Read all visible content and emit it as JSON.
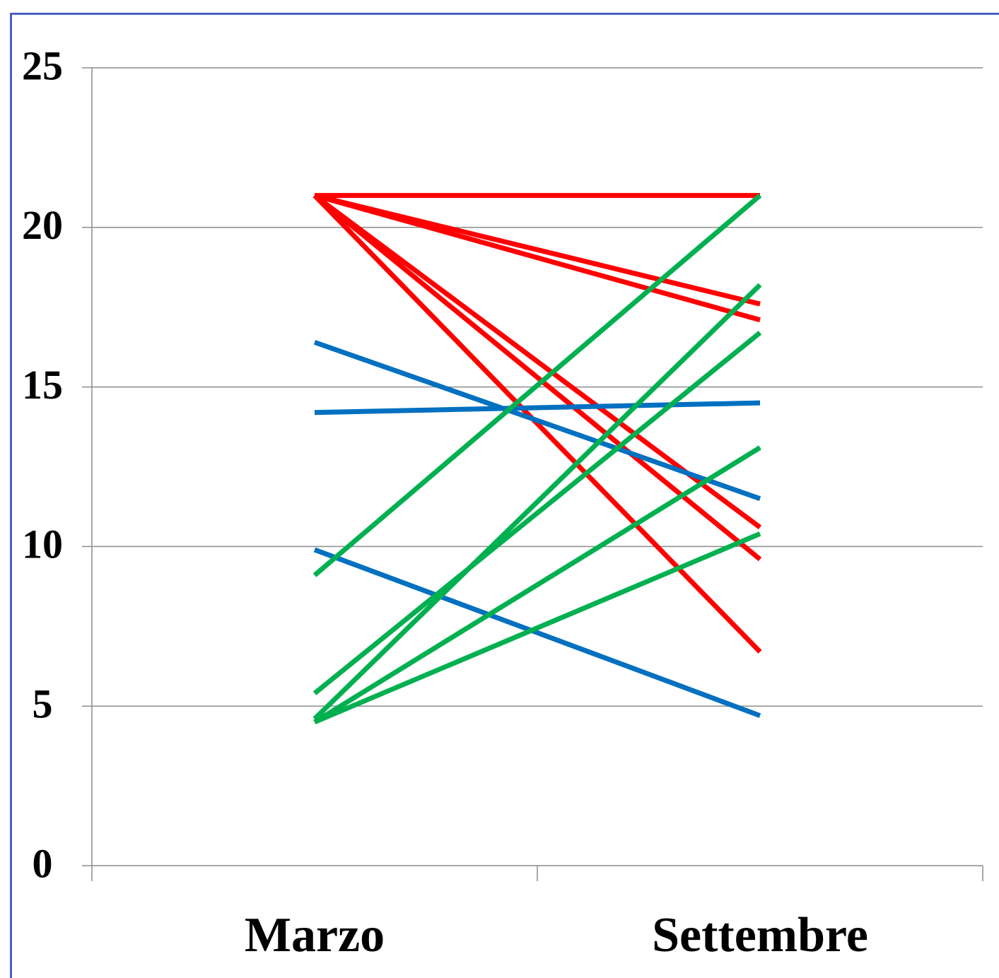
{
  "chart_data": {
    "type": "line",
    "categories": [
      "Marzo",
      "Settembre"
    ],
    "ylim": [
      0,
      25
    ],
    "yticks": [
      0,
      5,
      10,
      15,
      20,
      25
    ],
    "grid": true,
    "legend": "none",
    "colors": {
      "red": "#ff0000",
      "green": "#00b050",
      "blue": "#0070c0"
    },
    "series": [
      {
        "color": "red",
        "values": [
          21,
          21
        ]
      },
      {
        "color": "red",
        "values": [
          21,
          17.6
        ]
      },
      {
        "color": "red",
        "values": [
          21,
          17.1
        ]
      },
      {
        "color": "red",
        "values": [
          21,
          10.6
        ]
      },
      {
        "color": "red",
        "values": [
          21,
          9.6
        ]
      },
      {
        "color": "red",
        "values": [
          21,
          6.7
        ]
      },
      {
        "color": "blue",
        "values": [
          16.4,
          11.5
        ]
      },
      {
        "color": "blue",
        "values": [
          14.2,
          14.5
        ]
      },
      {
        "color": "blue",
        "values": [
          9.9,
          4.7
        ]
      },
      {
        "color": "green",
        "values": [
          9.1,
          21
        ]
      },
      {
        "color": "green",
        "values": [
          5.4,
          16.7
        ]
      },
      {
        "color": "green",
        "values": [
          4.6,
          18.2
        ]
      },
      {
        "color": "green",
        "values": [
          4.5,
          13.1
        ]
      },
      {
        "color": "green",
        "values": [
          4.5,
          10.4
        ]
      }
    ]
  }
}
